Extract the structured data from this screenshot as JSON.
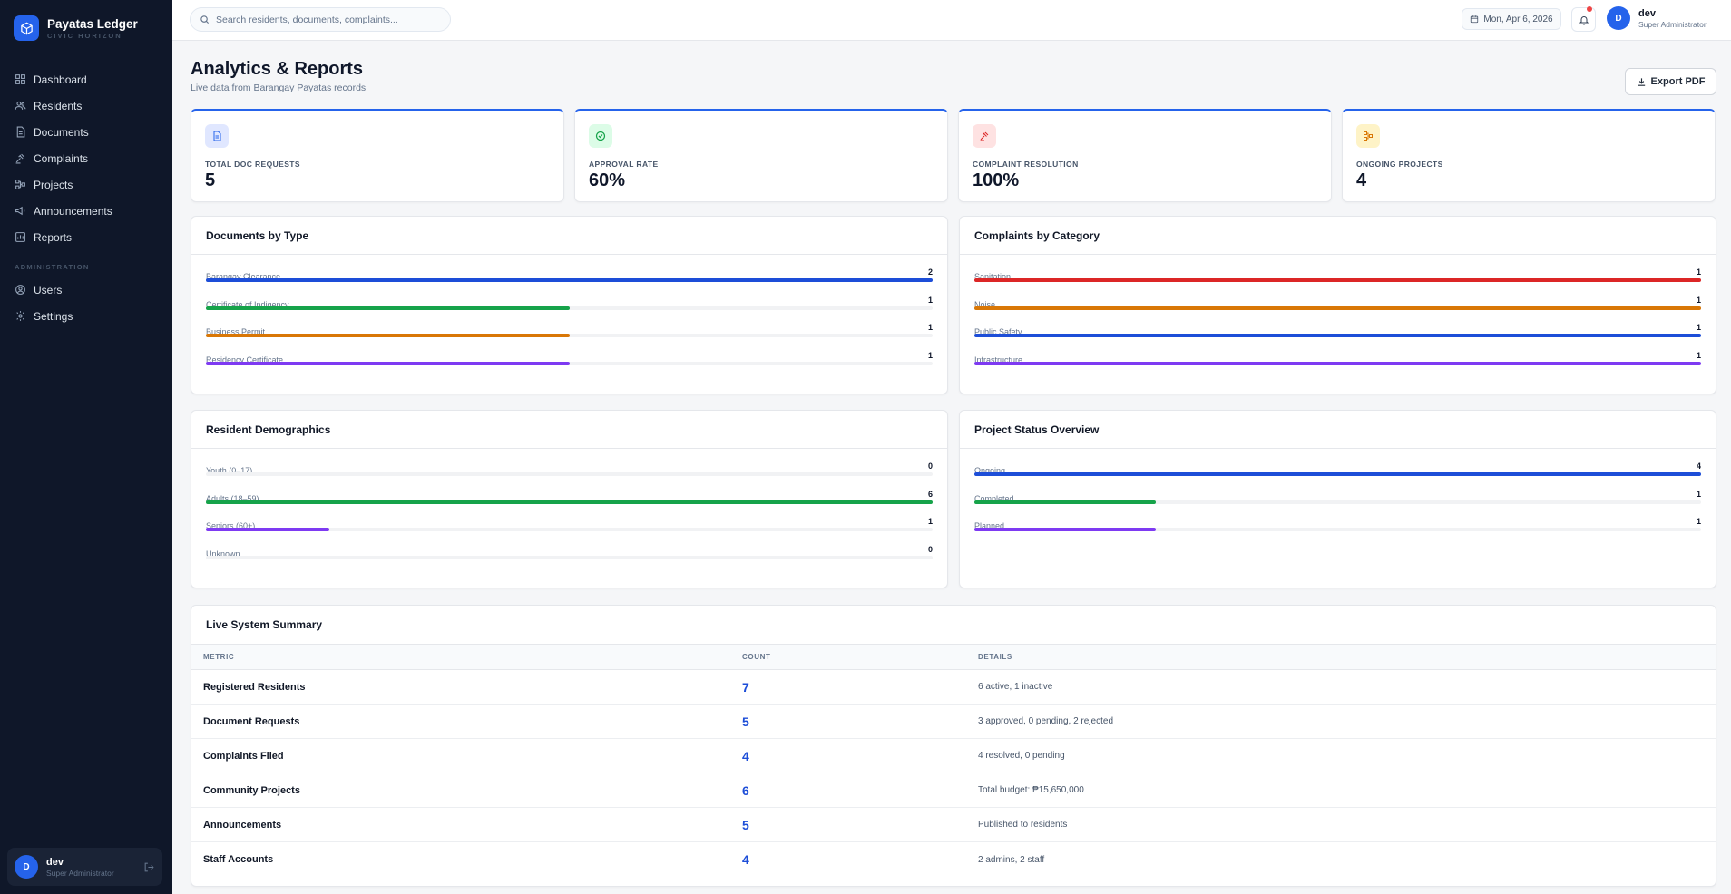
{
  "brand": {
    "name": "Payatas Ledger",
    "subtitle": "CIVIC HORIZON"
  },
  "sidebar": {
    "items": [
      {
        "label": "Dashboard",
        "icon": "grid-icon"
      },
      {
        "label": "Residents",
        "icon": "users-icon"
      },
      {
        "label": "Documents",
        "icon": "document-icon"
      },
      {
        "label": "Complaints",
        "icon": "gavel-icon"
      },
      {
        "label": "Projects",
        "icon": "project-icon"
      },
      {
        "label": "Announcements",
        "icon": "megaphone-icon"
      },
      {
        "label": "Reports",
        "icon": "report-icon"
      }
    ],
    "admin_section": "ADMINISTRATION",
    "admin_items": [
      {
        "label": "Users",
        "icon": "users-icon"
      },
      {
        "label": "Settings",
        "icon": "gear-icon"
      }
    ],
    "user": {
      "initial": "D",
      "name": "dev",
      "role": "Super Administrator"
    }
  },
  "header": {
    "search_placeholder": "Search residents, documents, complaints...",
    "date": "Mon, Apr 6, 2026",
    "user": {
      "initial": "D",
      "name": "dev",
      "role": "Super Administrator"
    }
  },
  "page": {
    "title": "Analytics & Reports",
    "subtitle": "Live data from Barangay Payatas records",
    "export_label": "Export PDF"
  },
  "stats": [
    {
      "label": "TOTAL DOC REQUESTS",
      "value": "5",
      "icon": "document-icon",
      "color": "#2563eb",
      "bg": "#e0e7ff"
    },
    {
      "label": "APPROVAL RATE",
      "value": "60%",
      "icon": "check-circle-icon",
      "color": "#16a34a",
      "bg": "#dcfce7"
    },
    {
      "label": "COMPLAINT RESOLUTION",
      "value": "100%",
      "icon": "gavel-icon",
      "color": "#dc2626",
      "bg": "#fee2e2"
    },
    {
      "label": "ONGOING PROJECTS",
      "value": "4",
      "icon": "project-icon",
      "color": "#d97706",
      "bg": "#fef3c7"
    }
  ],
  "documents_by_type": {
    "title": "Documents by Type",
    "items": [
      {
        "label": "Barangay Clearance",
        "value": "2",
        "fill": 1.0,
        "color": "#1d4ed8"
      },
      {
        "label": "Certificate of Indigency",
        "value": "1",
        "fill": 0.5,
        "color": "#16a34a"
      },
      {
        "label": "Business Permit",
        "value": "1",
        "fill": 0.5,
        "color": "#d97706"
      },
      {
        "label": "Residency Certificate",
        "value": "1",
        "fill": 0.5,
        "color": "#7e3af2"
      }
    ]
  },
  "complaints_by_category": {
    "title": "Complaints by Category",
    "items": [
      {
        "label": "Sanitation",
        "value": "1",
        "fill": 1.0,
        "color": "#dc2626"
      },
      {
        "label": "Noise",
        "value": "1",
        "fill": 1.0,
        "color": "#d97706"
      },
      {
        "label": "Public Safety",
        "value": "1",
        "fill": 1.0,
        "color": "#1d4ed8"
      },
      {
        "label": "Infrastructure",
        "value": "1",
        "fill": 1.0,
        "color": "#7e3af2"
      }
    ]
  },
  "resident_demographics": {
    "title": "Resident Demographics",
    "items": [
      {
        "label": "Youth (0–17)",
        "value": "0",
        "fill": 0,
        "color": "#1d4ed8"
      },
      {
        "label": "Adults (18–59)",
        "value": "6",
        "fill": 1.0,
        "color": "#16a34a"
      },
      {
        "label": "Seniors (60+)",
        "value": "1",
        "fill": 0.17,
        "color": "#7e3af2"
      },
      {
        "label": "Unknown",
        "value": "0",
        "fill": 0,
        "color": "#64748b"
      }
    ]
  },
  "project_status": {
    "title": "Project Status Overview",
    "items": [
      {
        "label": "Ongoing",
        "value": "4",
        "fill": 1.0,
        "color": "#1d4ed8"
      },
      {
        "label": "Completed",
        "value": "1",
        "fill": 0.25,
        "color": "#16a34a"
      },
      {
        "label": "Planned",
        "value": "1",
        "fill": 0.25,
        "color": "#7e3af2"
      }
    ]
  },
  "summary": {
    "title": "Live System Summary",
    "columns": [
      "METRIC",
      "COUNT",
      "DETAILS"
    ],
    "rows": [
      {
        "metric": "Registered Residents",
        "count": "7",
        "details": "6 active, 1 inactive"
      },
      {
        "metric": "Document Requests",
        "count": "5",
        "details": "3 approved, 0 pending, 2 rejected"
      },
      {
        "metric": "Complaints Filed",
        "count": "4",
        "details": "4 resolved, 0 pending"
      },
      {
        "metric": "Community Projects",
        "count": "6",
        "details": "Total budget: ₱15,650,000"
      },
      {
        "metric": "Announcements",
        "count": "5",
        "details": "Published to residents"
      },
      {
        "metric": "Staff Accounts",
        "count": "4",
        "details": "2 admins, 2 staff"
      }
    ]
  }
}
